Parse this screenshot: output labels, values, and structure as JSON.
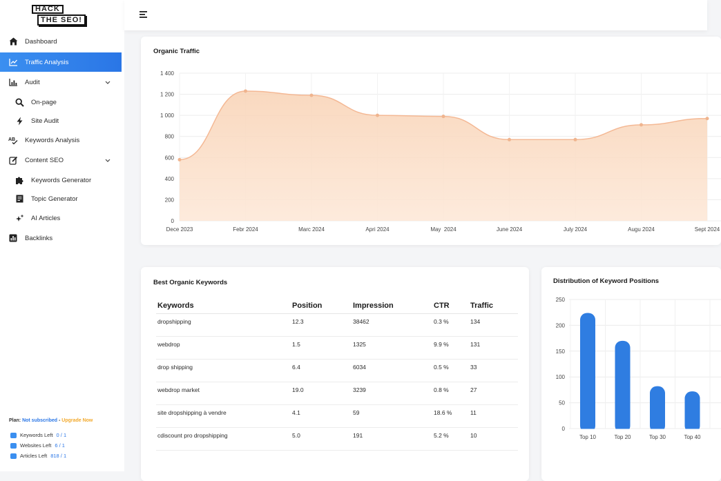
{
  "logo": {
    "line1": "HACK",
    "line2": "THE SEO!"
  },
  "sidebar": {
    "items": [
      {
        "label": "Dashboard",
        "icon": "home-icon",
        "active": false,
        "sub": false,
        "chevron": false
      },
      {
        "label": "Traffic Analysis",
        "icon": "line-chart-icon",
        "active": true,
        "sub": false,
        "chevron": false
      },
      {
        "label": "Audit",
        "icon": "bar-chart-icon",
        "active": false,
        "sub": false,
        "chevron": true
      },
      {
        "label": "On-page",
        "icon": "search-icon",
        "active": false,
        "sub": true,
        "chevron": false
      },
      {
        "label": "Site Audit",
        "icon": "bolt-icon",
        "active": false,
        "sub": true,
        "chevron": false
      },
      {
        "label": "Keywords Analysis",
        "icon": "spellcheck-icon",
        "active": false,
        "sub": false,
        "chevron": false
      },
      {
        "label": "Content SEO",
        "icon": "edit-icon",
        "active": false,
        "sub": false,
        "chevron": true
      },
      {
        "label": "Keywords Generator",
        "icon": "puzzle-icon",
        "active": false,
        "sub": true,
        "chevron": false
      },
      {
        "label": "Topic Generator",
        "icon": "document-icon",
        "active": false,
        "sub": true,
        "chevron": false
      },
      {
        "label": "AI Articles",
        "icon": "sparkle-icon",
        "active": false,
        "sub": true,
        "chevron": false
      },
      {
        "label": "Backlinks",
        "icon": "analytics-icon",
        "active": false,
        "sub": false,
        "chevron": false
      }
    ],
    "plan": {
      "prefix": "Plan: ",
      "status": "Not subscribed",
      "sep": " - ",
      "upgrade": "Upgrade Now"
    },
    "quotas": [
      {
        "label": "Keywords Left",
        "value": "0 / 1"
      },
      {
        "label": "Websites Left",
        "value": "6 / 1"
      },
      {
        "label": "Articles Left",
        "value": "818 / 1"
      }
    ]
  },
  "traffic": {
    "title": "Organic Traffic",
    "chart_data": {
      "type": "area",
      "title": "Organic Traffic",
      "categories": [
        "Dece 2023",
        "Febr 2024",
        "Marc 2024",
        "Apri 2024",
        "May  2024",
        "June 2024",
        "July 2024",
        "Augu 2024",
        "Sept 2024"
      ],
      "values": [
        580,
        1230,
        1190,
        1000,
        990,
        770,
        770,
        910,
        970
      ],
      "yticks": [
        0,
        200,
        400,
        600,
        800,
        1000,
        1200,
        1400
      ],
      "ylim": [
        0,
        1400
      ],
      "grid": true,
      "colors": {
        "fill": "#f8d2b4",
        "line": "#f4b894",
        "point": "#efb48e"
      }
    }
  },
  "keywords": {
    "title": "Best Organic Keywords",
    "columns": [
      "Keywords",
      "Position",
      "Impression",
      "CTR",
      "Traffic"
    ],
    "rows": [
      [
        "dropshipping",
        "12.3",
        "38462",
        "0.3 %",
        "134"
      ],
      [
        "webdrop",
        "1.5",
        "1325",
        "9.9 %",
        "131"
      ],
      [
        "drop shipping",
        "6.4",
        "6034",
        "0.5 %",
        "33"
      ],
      [
        "webdrop market",
        "19.0",
        "3239",
        "0.8 %",
        "27"
      ],
      [
        "site dropshipping à vendre",
        "4.1",
        "59",
        "18.6 %",
        "11"
      ],
      [
        "cdiscount pro dropshipping",
        "5.0",
        "191",
        "5.2 %",
        "10"
      ]
    ]
  },
  "distribution": {
    "title": "Distribution of Keyword Positions",
    "chart_data": {
      "type": "bar",
      "title": "Distribution of Keyword Positions",
      "categories": [
        "Top 10",
        "Top 20",
        "Top 30",
        "Top 40"
      ],
      "values": [
        224,
        170,
        82,
        72
      ],
      "yticks": [
        0,
        50,
        100,
        150,
        200,
        250
      ],
      "ylim": [
        0,
        250
      ],
      "grid": true,
      "colors": {
        "bar": "#2f7de1"
      }
    }
  },
  "colors": {
    "accent": "#2a76e6",
    "upgrade": "#f2a92c"
  }
}
